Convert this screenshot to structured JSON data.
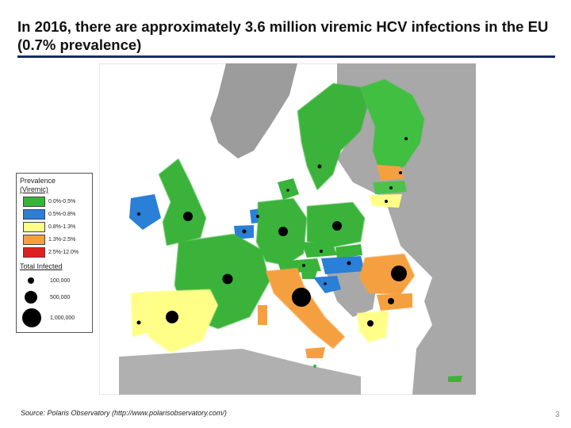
{
  "title": "In 2016, there are approximately 3.6 million viremic HCV infections in the EU (0.7% prevalence)",
  "legend": {
    "heading_prevalence": "Prevalence",
    "heading_viremic": "(Viremic)",
    "prevalence_classes": [
      {
        "label": "0.0%-0.5%",
        "color": "#3ab33a"
      },
      {
        "label": "0.5%-0.8%",
        "color": "#2a7fd6"
      },
      {
        "label": "0.8%-1.3%",
        "color": "#ffff88"
      },
      {
        "label": "1.3%-2.5%",
        "color": "#f5a040"
      },
      {
        "label": "2.5%-12.0%",
        "color": "#e02020"
      }
    ],
    "heading_total": "Total Infected",
    "bubbles": [
      {
        "label": "100,000",
        "value": 100000
      },
      {
        "label": "500,000",
        "value": 500000
      },
      {
        "label": "1,000,000",
        "value": 1000000
      }
    ]
  },
  "source": "Source: Polaris Observatory (http://www.polarisobservatory.com/)",
  "page_number": "3"
}
